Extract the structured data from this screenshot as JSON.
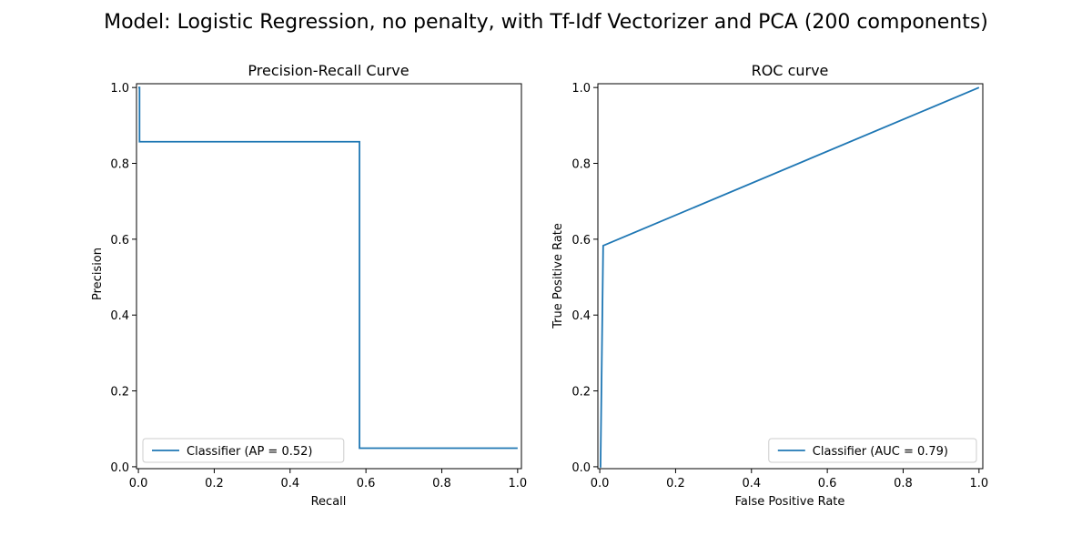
{
  "figure": {
    "title": "Model: Logistic Regression, no penalty, with Tf-Idf Vectorizer and PCA (200 components)"
  },
  "colors": {
    "series": "#1f77b4",
    "axis": "#000000",
    "legend_border": "#cccccc"
  },
  "chart_data": [
    {
      "type": "line",
      "title": "Precision-Recall Curve",
      "xlabel": "Recall",
      "ylabel": "Precision",
      "xlim": [
        -0.005,
        1.01
      ],
      "ylim": [
        -0.005,
        1.01
      ],
      "xticks": [
        0.0,
        0.2,
        0.4,
        0.6,
        0.8,
        1.0
      ],
      "yticks": [
        0.0,
        0.2,
        0.4,
        0.6,
        0.8,
        1.0
      ],
      "tick_labels": [
        "0.0",
        "0.2",
        "0.4",
        "0.6",
        "0.8",
        "1.0"
      ],
      "legend_position": "lower-left",
      "grid": false,
      "series": [
        {
          "name": "Classifier (AP = 0.52)",
          "x": [
            0.0,
            0.003,
            0.003,
            0.583,
            0.583,
            1.0
          ],
          "y": [
            1.0,
            1.0,
            0.857,
            0.857,
            0.049,
            0.049
          ]
        }
      ]
    },
    {
      "type": "line",
      "title": "ROC curve",
      "xlabel": "False Positive Rate",
      "ylabel": "True Positive Rate",
      "xlim": [
        -0.005,
        1.01
      ],
      "ylim": [
        -0.005,
        1.01
      ],
      "xticks": [
        0.0,
        0.2,
        0.4,
        0.6,
        0.8,
        1.0
      ],
      "yticks": [
        0.0,
        0.2,
        0.4,
        0.6,
        0.8,
        1.0
      ],
      "tick_labels": [
        "0.0",
        "0.2",
        "0.4",
        "0.6",
        "0.8",
        "1.0"
      ],
      "legend_position": "lower-right",
      "grid": false,
      "series": [
        {
          "name": "Classifier (AUC = 0.79)",
          "x": [
            0.0,
            0.002,
            0.009,
            1.0
          ],
          "y": [
            0.0,
            0.0,
            0.583,
            1.0
          ]
        }
      ]
    }
  ]
}
